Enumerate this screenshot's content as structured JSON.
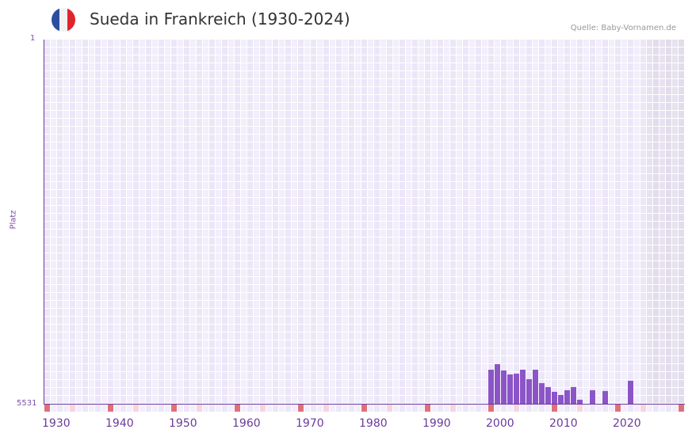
{
  "header": {
    "title": "Sueda in Frankreich (1930-2024)",
    "source": "Quelle: Baby-Vornamen.de",
    "flag": {
      "colors": [
        "#2a4fa0",
        "#f2f2f2",
        "#e0242c"
      ]
    }
  },
  "axis": {
    "ylabel": "Platz",
    "ytop": "1",
    "ybottom": "5531",
    "xticks": [
      "1930",
      "1940",
      "1950",
      "1960",
      "1970",
      "1980",
      "1990",
      "2000",
      "2010",
      "2020"
    ]
  },
  "colors": {
    "bar": "#8b55c8",
    "axis": "#6a3a9c",
    "tick_major": "#e07078",
    "tick_minor": "#f5d5de"
  },
  "chart_data": {
    "type": "bar",
    "title": "Sueda in Frankreich (1930-2024)",
    "xlabel": "",
    "ylabel": "Platz",
    "ylim": [
      5531,
      1
    ],
    "y_inverted": true,
    "grid": true,
    "categories": [
      "2000",
      "2001",
      "2002",
      "2003",
      "2004",
      "2005",
      "2006",
      "2007",
      "2008",
      "2009",
      "2010",
      "2011",
      "2012",
      "2013",
      "2014",
      "2016",
      "2018",
      "2022"
    ],
    "values": [
      5014,
      4930,
      5026,
      5086,
      5074,
      5014,
      5158,
      5014,
      5218,
      5278,
      5350,
      5398,
      5326,
      5278,
      5470,
      5326,
      5338,
      5182
    ]
  }
}
